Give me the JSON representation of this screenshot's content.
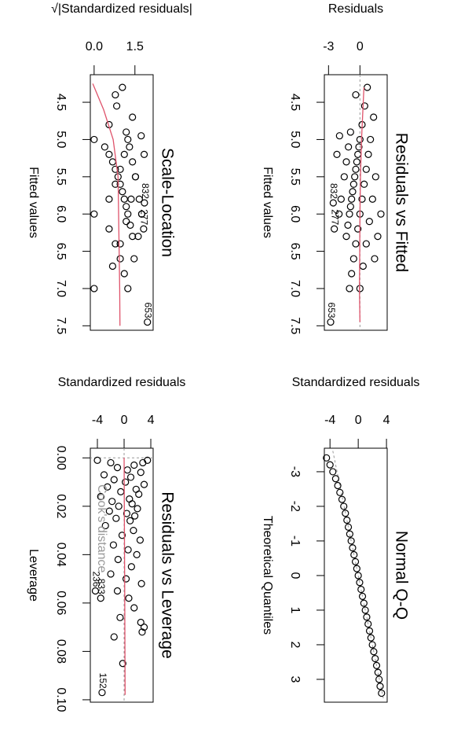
{
  "chart_data": [
    {
      "type": "scatter",
      "title": "Residuals vs Fitted",
      "xlabel": "Fitted values",
      "ylabel": "Residuals",
      "color": "#000000",
      "x": [
        4.55,
        4.8,
        5.0,
        5.1,
        5.2,
        5.3,
        5.4,
        5.5,
        5.6,
        5.7,
        5.8,
        5.9,
        6.0,
        6.15,
        6.3,
        4.7,
        5.0,
        5.2,
        5.4,
        5.6,
        5.8,
        6.0,
        6.2,
        6.4,
        6.6,
        6.8,
        7.0,
        5.5,
        5.8,
        6.1,
        6.4,
        6.7,
        7.0,
        4.9,
        5.1,
        5.3,
        5.5,
        5.8,
        6.0,
        6.0,
        6.3,
        6.6,
        4.95,
        5.2,
        4.3,
        4.4
      ],
      "values": [
        0.45,
        0.2,
        0,
        -0.1,
        -0.2,
        -0.3,
        -0.4,
        -0.5,
        -0.6,
        -0.7,
        -0.8,
        -0.9,
        -1.0,
        -1.15,
        -1.3,
        1.3,
        1.0,
        0.8,
        0.6,
        0.4,
        0.2,
        0,
        -0.2,
        -0.4,
        -0.6,
        -0.8,
        -1.0,
        1.5,
        1.2,
        0.9,
        0.6,
        0.3,
        0,
        -0.9,
        -1.1,
        -1.3,
        -1.5,
        -1.8,
        -2.0,
        2.0,
        1.7,
        1.4,
        -1.95,
        -2.2,
        0.7,
        -0.4
      ],
      "labeled_points": [
        {
          "label": "653",
          "x": 7.45,
          "value": -2.8
        },
        {
          "label": "832",
          "x": 5.85,
          "value": -2.55
        },
        {
          "label": "277",
          "x": 6.2,
          "value": -2.45
        }
      ],
      "smooth": {
        "color": "#df536b",
        "x": [
          4.3,
          5.0,
          5.5,
          6.0,
          6.5,
          7.0,
          7.45
        ],
        "values": [
          0.38,
          0.15,
          0.05,
          0,
          -0.02,
          -0.05,
          0
        ]
      },
      "hline": 0,
      "ref_color": "#999999",
      "xlim": [
        4.13,
        7.56
      ],
      "ylim": [
        -3.4,
        2.6
      ],
      "xticks": [
        4.5,
        {
          "value": 5,
          "label": "5.0"
        },
        5.5,
        {
          "value": 6,
          "label": "6.0"
        },
        6.5,
        {
          "value": 7,
          "label": "7.0"
        },
        7.5
      ],
      "yticks": [
        -3,
        0
      ]
    },
    {
      "type": "scatter",
      "title": "Normal Q-Q",
      "xlabel": "Theoretical Quantiles",
      "ylabel": "Standardized residuals",
      "color": "#000000",
      "x": [
        -3.4,
        -3.2,
        -3.0,
        -2.8,
        -2.6,
        -2.4,
        -2.2,
        -2.0,
        -1.8,
        -1.6,
        -1.4,
        -1.2,
        -1.0,
        -0.8,
        -0.6,
        -0.4,
        -0.2,
        0,
        0.2,
        0.4,
        0.6,
        0.8,
        1.0,
        1.2,
        1.4,
        1.6,
        1.8,
        2.0,
        2.2,
        2.4,
        2.6,
        2.8,
        3.0,
        3.2,
        3.4
      ],
      "values": [
        -4.5,
        -4.0,
        -3.6,
        -3.2,
        -2.9,
        -2.6,
        -2.3,
        -2.05,
        -1.82,
        -1.6,
        -1.4,
        -1.2,
        -1.0,
        -0.8,
        -0.6,
        -0.4,
        -0.2,
        0,
        0.2,
        0.4,
        0.6,
        0.8,
        1.0,
        1.2,
        1.4,
        1.6,
        1.8,
        2.0,
        2.2,
        2.4,
        2.6,
        2.8,
        2.95,
        3.1,
        3.3
      ],
      "refline": {
        "x": [
          -3.6,
          3.6
        ],
        "values": [
          -3.6,
          3.6
        ]
      },
      "ref_color": "#999999",
      "xlim": [
        -3.68,
        3.66
      ],
      "ylim": [
        -4.8,
        4.1
      ],
      "xticks": [
        -3,
        -2,
        -1,
        0,
        1,
        2,
        3
      ],
      "yticks": [
        -4,
        0,
        4
      ]
    },
    {
      "type": "scatter",
      "title": "Scale-Location",
      "xlabel": "Fitted values",
      "ylabel": "√|Standardized residuals|",
      "color": "#000000",
      "x": [
        4.55,
        4.8,
        5.0,
        5.1,
        5.2,
        5.3,
        5.4,
        5.5,
        5.6,
        5.7,
        5.8,
        5.9,
        6.0,
        6.15,
        6.3,
        4.7,
        5.0,
        5.2,
        5.4,
        5.6,
        5.8,
        6.0,
        6.2,
        6.4,
        6.6,
        6.8,
        7.0,
        5.5,
        5.8,
        6.1,
        6.4,
        6.7,
        7.0,
        4.9,
        5.1,
        5.3,
        5.5,
        5.8,
        6.0,
        6.0,
        6.3,
        6.6,
        4.95,
        5.2,
        4.3,
        4.4
      ],
      "values": [
        0.83,
        0.55,
        0.0,
        0.39,
        0.55,
        0.68,
        0.78,
        0.88,
        0.96,
        1.04,
        1.11,
        1.18,
        1.24,
        1.33,
        1.41,
        1.41,
        1.24,
        1.11,
        0.96,
        0.78,
        0.55,
        0.0,
        0.55,
        0.78,
        0.96,
        1.11,
        1.24,
        1.52,
        1.36,
        1.18,
        0.96,
        0.68,
        0.0,
        1.18,
        1.3,
        1.41,
        1.52,
        1.66,
        1.75,
        1.75,
        1.62,
        1.47,
        1.73,
        1.84,
        1.04,
        0.78
      ],
      "labeled_points": [
        {
          "label": "653",
          "x": 7.45,
          "value": 1.96
        },
        {
          "label": "832",
          "x": 5.85,
          "value": 1.85
        },
        {
          "label": "277",
          "x": 6.2,
          "value": 1.82
        }
      ],
      "smooth": {
        "color": "#df536b",
        "x": [
          4.25,
          4.6,
          5.0,
          5.5,
          6.0,
          6.5,
          7.0,
          7.5
        ],
        "values": [
          -0.05,
          0.35,
          0.7,
          0.88,
          0.9,
          0.92,
          0.94,
          0.95
        ]
      },
      "xlim": [
        4.13,
        7.56
      ],
      "ylim": [
        -0.14,
        2.17
      ],
      "xticks": [
        4.5,
        {
          "value": 5,
          "label": "5.0"
        },
        5.5,
        {
          "value": 6,
          "label": "6.0"
        },
        6.5,
        {
          "value": 7,
          "label": "7.0"
        },
        7.5
      ],
      "yticks": [
        {
          "value": 0,
          "label": "0.0"
        },
        1.5
      ]
    },
    {
      "type": "scatter",
      "title": "Residuals vs Leverage",
      "xlabel": "Leverage",
      "ylabel": "Standardized residuals",
      "color": "#000000",
      "x": [
        0.001,
        0.001,
        0.002,
        0.002,
        0.003,
        0.004,
        0.005,
        0.006,
        0.007,
        0.008,
        0.009,
        0.01,
        0.011,
        0.012,
        0.013,
        0.014,
        0.015,
        0.016,
        0.017,
        0.018,
        0.019,
        0.02,
        0.021,
        0.022,
        0.023,
        0.024,
        0.025,
        0.026,
        0.028,
        0.03,
        0.032,
        0.034,
        0.036,
        0.038,
        0.04,
        0.042,
        0.045,
        0.048,
        0.05,
        0.052,
        0.055,
        0.058,
        0.062,
        0.066,
        0.068,
        0.07,
        0.072,
        0.074,
        0.085
      ],
      "values": [
        -4.0,
        3.5,
        2.8,
        -2.0,
        1.5,
        -1.0,
        0.5,
        2.5,
        -3.0,
        1.0,
        -1.5,
        0.2,
        3.0,
        -2.5,
        1.8,
        -0.5,
        2.2,
        -3.5,
        0.8,
        -1.8,
        1.2,
        -0.8,
        2.0,
        -2.2,
        0.4,
        1.6,
        -1.2,
        0.9,
        -2.8,
        1.4,
        -0.3,
        2.4,
        -1.6,
        0.6,
        1.9,
        -0.9,
        1.1,
        -2.0,
        0.3,
        2.6,
        -1.0,
        0.7,
        1.5,
        -0.6,
        2.5,
        3.0,
        2.7,
        -1.5,
        -0.2
      ],
      "labeled_points": [
        {
          "label": "152",
          "x": 0.097,
          "value": -3.3
        },
        {
          "label": "236",
          "x": 0.055,
          "value": -4.3
        },
        {
          "label": "833",
          "x": 0.058,
          "value": -3.5
        }
      ],
      "smooth": {
        "color": "#df536b",
        "x": [
          0.0,
          0.03,
          0.06,
          0.098
        ],
        "values": [
          0,
          0.05,
          0.1,
          0.15
        ]
      },
      "hline": 0,
      "vline": 0,
      "ref_color": "#999999",
      "cooks_label": "Cook's distance",
      "xlim": [
        -0.004,
        0.101
      ],
      "ylim": [
        -5.06,
        4.35
      ],
      "xticks": [
        {
          "value": 0,
          "label": "0.00"
        },
        0.02,
        0.04,
        0.06,
        0.08,
        {
          "value": 0.1,
          "label": "0.10"
        }
      ],
      "yticks": [
        -4,
        0,
        4
      ]
    }
  ]
}
